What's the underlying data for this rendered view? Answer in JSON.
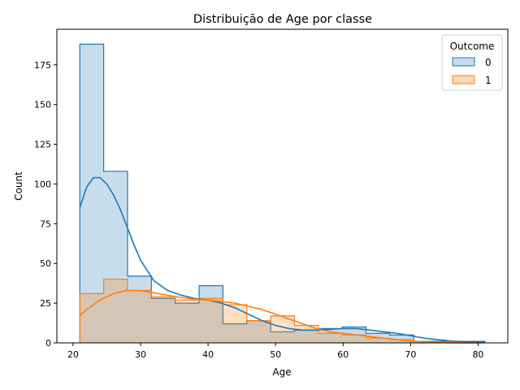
{
  "chart_data": {
    "type": "histogram",
    "title": "Distribuição de Age por classe",
    "xlabel": "Age",
    "ylabel": "Count",
    "xlim": [
      17.6,
      84.4
    ],
    "ylim": [
      0,
      197.4
    ],
    "xticks": [
      20,
      30,
      40,
      50,
      60,
      70,
      80
    ],
    "yticks": [
      0,
      25,
      50,
      75,
      100,
      125,
      150,
      175
    ],
    "bin_edges": [
      21.0,
      24.53,
      28.07,
      31.6,
      35.13,
      38.67,
      42.2,
      45.73,
      49.27,
      52.8,
      56.33,
      59.87,
      63.4,
      66.93,
      70.47,
      74.0,
      77.53,
      81.0
    ],
    "legend": {
      "title": "Outcome",
      "placement": "top-right"
    },
    "series": [
      {
        "name": "0",
        "color": "#1f77b4",
        "counts": [
          188,
          108,
          42,
          28,
          25,
          36,
          12,
          14,
          7,
          8,
          9,
          10,
          6,
          5,
          1,
          1,
          1
        ],
        "kde": {
          "x": [
            21,
            22,
            23,
            24,
            25,
            26,
            27,
            28,
            29,
            30,
            32,
            34,
            36,
            38,
            40,
            42,
            44,
            46,
            48,
            50,
            52,
            54,
            56,
            58,
            60,
            62,
            64,
            66,
            68,
            70,
            72,
            74,
            76,
            78,
            80,
            81
          ],
          "y": [
            85,
            98,
            104,
            104,
            100,
            93,
            84,
            73,
            62,
            52,
            39,
            33,
            30,
            28,
            27,
            25,
            22,
            18,
            14,
            11,
            9,
            8,
            8,
            8.5,
            9,
            9,
            8,
            7,
            6,
            4.5,
            3,
            2,
            1.2,
            0.7,
            0.4,
            0.3
          ]
        }
      },
      {
        "name": "1",
        "color": "#ff7f0e",
        "counts": [
          31,
          40,
          33,
          29,
          27,
          28,
          24,
          14,
          17,
          11,
          6,
          5,
          3,
          2,
          0,
          0,
          0
        ],
        "kde": {
          "x": [
            21,
            22,
            24,
            26,
            28,
            30,
            32,
            34,
            36,
            38,
            40,
            42,
            44,
            46,
            48,
            50,
            52,
            54,
            56,
            58,
            60,
            62,
            64,
            66,
            68,
            70,
            72,
            74,
            76,
            78,
            80
          ],
          "y": [
            17,
            21,
            27,
            31,
            33,
            33,
            31.5,
            30,
            28.5,
            27.5,
            27,
            26,
            25,
            23,
            21,
            18,
            15,
            12,
            9,
            7,
            6,
            5,
            4,
            3,
            2,
            1.2,
            0.7,
            0.3,
            0.1,
            0.05,
            0
          ]
        }
      }
    ]
  }
}
